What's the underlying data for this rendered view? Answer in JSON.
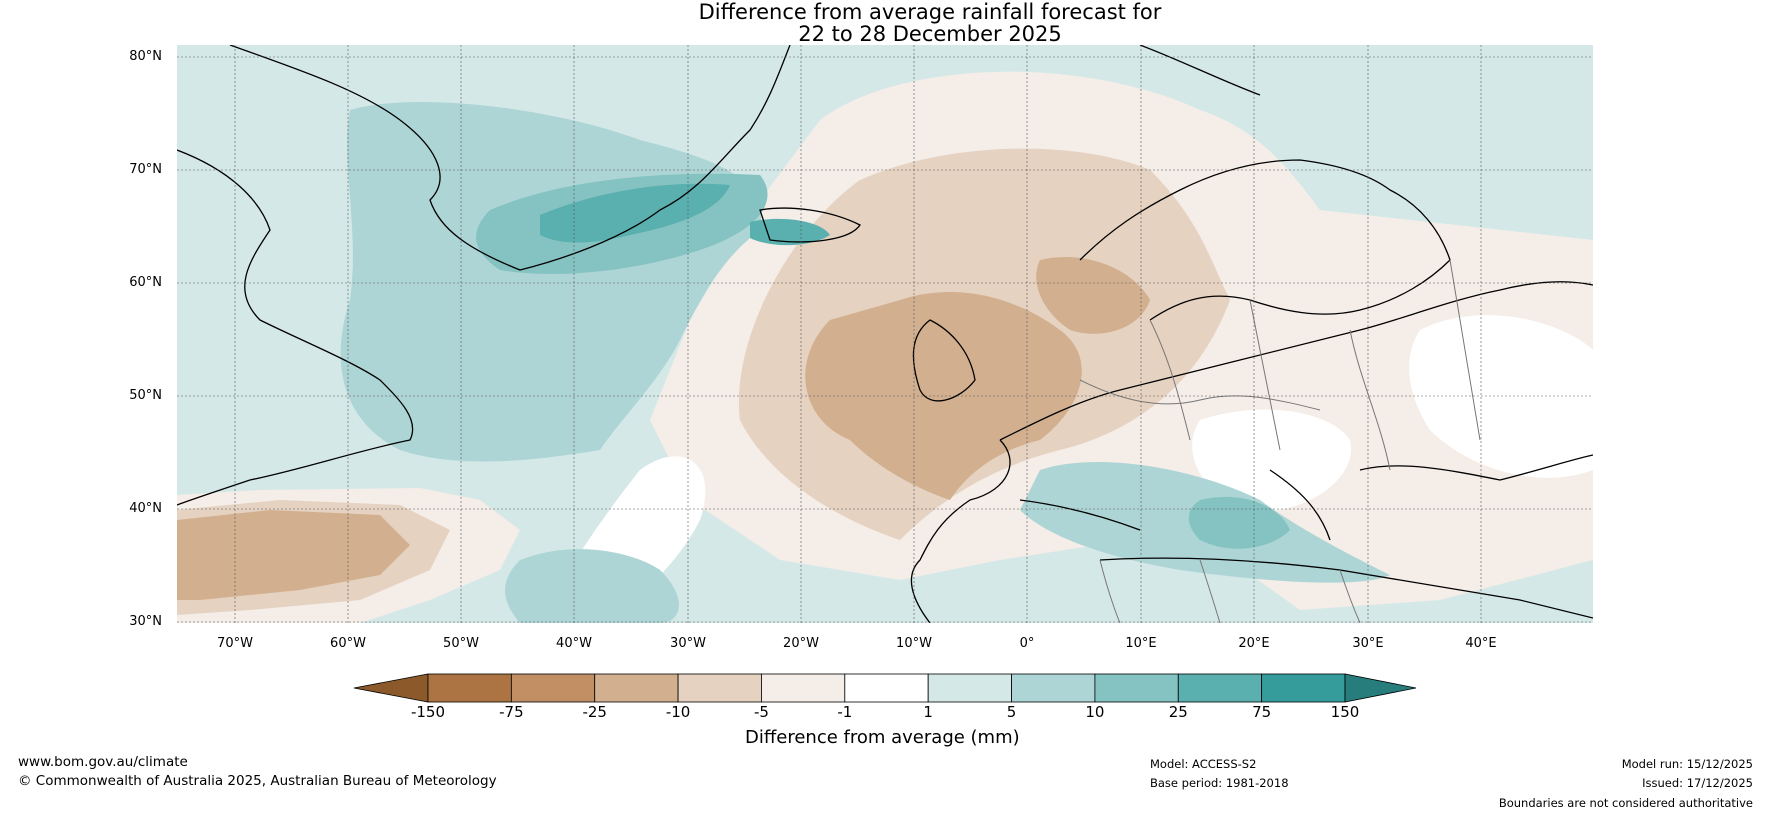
{
  "title_line1": "Difference from average rainfall forecast for",
  "title_line2": "22 to 28 December 2025",
  "lat_labels": [
    "80°N",
    "70°N",
    "60°N",
    "50°N",
    "40°N",
    "30°N"
  ],
  "lon_labels": [
    "70°W",
    "60°W",
    "50°W",
    "40°W",
    "30°W",
    "20°W",
    "10°W",
    "0°",
    "10°E",
    "20°E",
    "30°E",
    "40°E"
  ],
  "colorbar": {
    "ticks": [
      "-150",
      "-75",
      "-25",
      "-10",
      "-5",
      "-1",
      "1",
      "5",
      "10",
      "25",
      "75",
      "150"
    ],
    "colors": [
      "#8c5a2a",
      "#ad7443",
      "#c28f64",
      "#d2b08f",
      "#e5d2c1",
      "#f4ede8",
      "#ffffff",
      "#d5e8e8",
      "#aed5d5",
      "#85c2c2",
      "#5aafaf",
      "#359c9b",
      "#267d7c"
    ],
    "title": "Difference from average (mm)"
  },
  "footer": {
    "website": "www.bom.gov.au/climate",
    "copyright": "© Commonwealth of Australia 2025, Australian Bureau of Meteorology",
    "model": "Model: ACCESS-S2",
    "base_period": "Base period: 1981-2018",
    "model_run": "Model run: 15/12/2025",
    "issued": "Issued: 17/12/2025",
    "disclaimer": "Boundaries are not considered authoritative"
  }
}
